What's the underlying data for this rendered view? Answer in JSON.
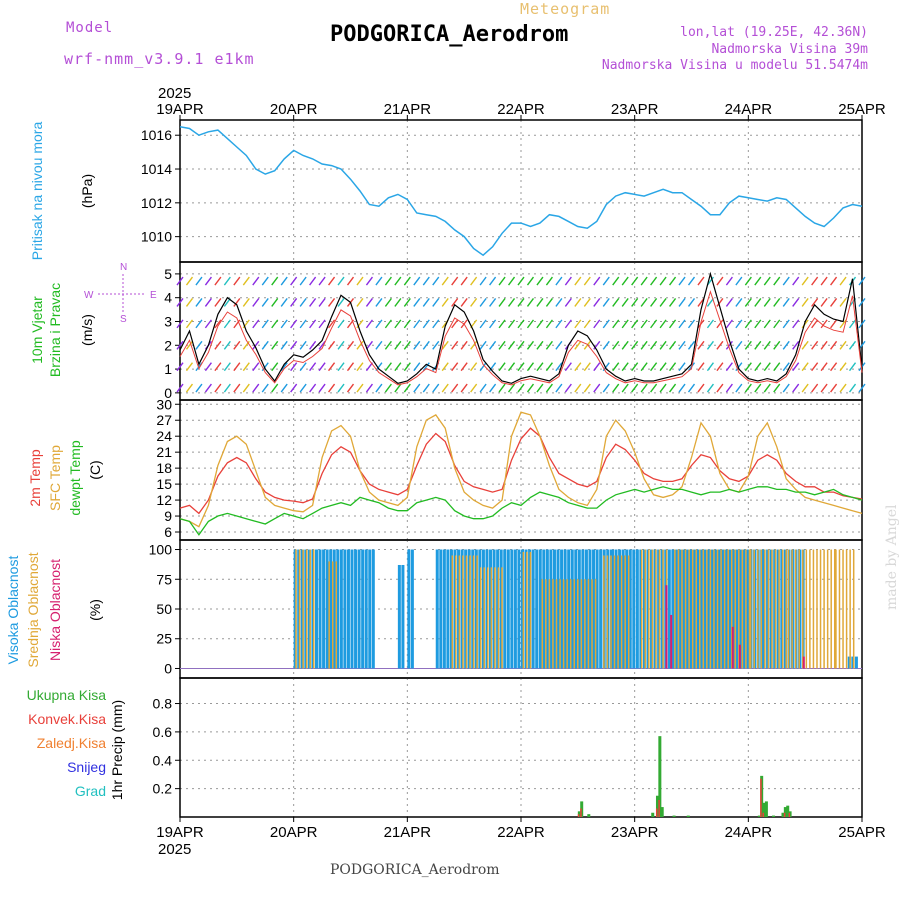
{
  "header": {
    "model_label": "Model",
    "model_name": "wrf-nmm_v3.9.1 e1km",
    "meteogram_label": "Meteogram",
    "station": "PODGORICA_Aerodrom",
    "lonlat": "lon,lat (19.25E, 42.36N)",
    "altitude": "Nadmorska Visina 39m",
    "model_altitude": "Nadmorska Visina u modelu 51.5474m",
    "footer": "PODGORICA_Aerodrom",
    "made_by": "made by Angel"
  },
  "colors": {
    "pressure": "#2aa6e6",
    "wind_label": "#22bb22",
    "temp2m": "#e8403a",
    "sfc": "#e0a838",
    "dewpt": "#22bb22",
    "high_cloud": "#1e9be0",
    "mid_cloud": "#e0a838",
    "low_cloud": "#d6206e",
    "precip_total": "#33aa33",
    "precip_conv": "#e8403a",
    "precip_frozen": "#f08030",
    "precip_snow": "#3030e0",
    "precip_hail": "#22c0c0",
    "wind_dir_label": "#b44fd6"
  },
  "chart_data": [
    {
      "type": "line",
      "title": "",
      "ylabel_colored": "Pritisak na nivou mora",
      "ylabel": "(hPa)",
      "x_top_year": "2025",
      "x_ticks": [
        "19APR",
        "20APR",
        "21APR",
        "22APR",
        "23APR",
        "24APR",
        "25APR"
      ],
      "ylim": [
        1008.5,
        1016.9
      ],
      "y_ticks": [
        1010,
        1012,
        1014,
        1016
      ],
      "grid": true,
      "series": [
        {
          "name": "",
          "x_hours": [
            0,
            2,
            4,
            6,
            8,
            10,
            12,
            14,
            16,
            18,
            20,
            22,
            24,
            26,
            28,
            30,
            32,
            34,
            36,
            38,
            40,
            42,
            44,
            46,
            48,
            50,
            52,
            54,
            56,
            58,
            60,
            62,
            64,
            66,
            68,
            70,
            72,
            74,
            76,
            78,
            80,
            82,
            84,
            86,
            88,
            90,
            92,
            94,
            96,
            98,
            100,
            102,
            104,
            106,
            108,
            110,
            112,
            114,
            116,
            118,
            120,
            122,
            124,
            126,
            128,
            130,
            132,
            134,
            136,
            138,
            140,
            142,
            144
          ],
          "values": [
            1016.5,
            1016.4,
            1016.0,
            1016.2,
            1016.3,
            1015.8,
            1015.3,
            1014.8,
            1014.0,
            1013.7,
            1013.9,
            1014.6,
            1015.1,
            1014.8,
            1014.6,
            1014.3,
            1014.2,
            1014.0,
            1013.4,
            1012.7,
            1011.9,
            1011.8,
            1012.3,
            1012.5,
            1012.2,
            1011.4,
            1011.3,
            1011.2,
            1010.9,
            1010.4,
            1010.0,
            1009.3,
            1008.9,
            1009.4,
            1010.2,
            1010.8,
            1010.8,
            1010.6,
            1010.8,
            1011.3,
            1011.2,
            1010.9,
            1010.6,
            1010.5,
            1010.9,
            1011.9,
            1012.4,
            1012.6,
            1012.5,
            1012.4,
            1012.6,
            1012.8,
            1012.6,
            1012.6,
            1012.2,
            1011.8,
            1011.3,
            1011.3,
            1012.0,
            1012.4,
            1012.3,
            1012.2,
            1012.1,
            1012.3,
            1012.2,
            1011.7,
            1011.2,
            1010.8,
            1010.6,
            1011.1,
            1011.7,
            1011.9,
            1011.8
          ]
        }
      ]
    },
    {
      "type": "line",
      "title": "",
      "ylabel_colored": "10m Vjetar Brzina i Pravac",
      "ylabel": "(m/s)",
      "direction_legend": [
        "N",
        "S",
        "W",
        "E",
        "<",
        "-",
        "|"
      ],
      "ylim": [
        -0.3,
        5.5
      ],
      "y_ticks": [
        0,
        1,
        2,
        3,
        4,
        5
      ],
      "grid": true,
      "series": [
        {
          "name": "",
          "x_hours": [
            0,
            2,
            4,
            6,
            8,
            10,
            12,
            14,
            16,
            18,
            20,
            22,
            24,
            26,
            28,
            30,
            32,
            34,
            36,
            38,
            40,
            42,
            44,
            46,
            48,
            50,
            52,
            54,
            56,
            58,
            60,
            62,
            64,
            66,
            68,
            70,
            72,
            74,
            76,
            78,
            80,
            82,
            84,
            86,
            88,
            90,
            92,
            94,
            96,
            98,
            100,
            102,
            104,
            106,
            108,
            110,
            112,
            114,
            116,
            118,
            120,
            122,
            124,
            126,
            128,
            130,
            132,
            134,
            136,
            138,
            140,
            142,
            144
          ],
          "values": [
            1.8,
            2.6,
            1.2,
            2.0,
            3.3,
            4.0,
            3.7,
            2.6,
            1.9,
            1.0,
            0.5,
            1.2,
            1.6,
            1.5,
            1.8,
            2.2,
            3.2,
            4.1,
            3.8,
            2.6,
            1.6,
            1.0,
            0.7,
            0.4,
            0.5,
            0.8,
            1.2,
            1.0,
            2.8,
            3.7,
            3.4,
            2.6,
            1.4,
            0.9,
            0.5,
            0.4,
            0.6,
            0.7,
            0.6,
            0.5,
            0.8,
            2.0,
            2.6,
            2.4,
            1.8,
            1.0,
            0.7,
            0.5,
            0.6,
            0.5,
            0.5,
            0.6,
            0.7,
            0.8,
            1.2,
            3.5,
            5.0,
            3.6,
            2.2,
            1.0,
            0.6,
            0.5,
            0.6,
            0.5,
            0.8,
            1.6,
            3.0,
            3.7,
            3.3,
            3.1,
            3.0,
            4.8,
            1.0
          ]
        }
      ]
    },
    {
      "type": "line",
      "title": "",
      "ylabel_colored": [
        "2m Temp",
        "SFC Temp",
        "dewpt Temp"
      ],
      "ylabel": "(C)",
      "ylim": [
        4.5,
        30.8
      ],
      "y_ticks": [
        6,
        9,
        12,
        15,
        18,
        21,
        24,
        27,
        30
      ],
      "grid": true,
      "x_hours": [
        0,
        2,
        4,
        6,
        8,
        10,
        12,
        14,
        16,
        18,
        20,
        22,
        24,
        26,
        28,
        30,
        32,
        34,
        36,
        38,
        40,
        42,
        44,
        46,
        48,
        50,
        52,
        54,
        56,
        58,
        60,
        62,
        64,
        66,
        68,
        70,
        72,
        74,
        76,
        78,
        80,
        82,
        84,
        86,
        88,
        90,
        92,
        94,
        96,
        98,
        100,
        102,
        104,
        106,
        108,
        110,
        112,
        114,
        116,
        118,
        120,
        122,
        124,
        126,
        128,
        130,
        132,
        134,
        136,
        138,
        140,
        142,
        144
      ],
      "series": [
        {
          "name": "2m Temp",
          "values": [
            10.5,
            11.0,
            9.5,
            12.0,
            16.5,
            19.0,
            20.0,
            19.0,
            16.0,
            13.5,
            12.5,
            12.0,
            11.8,
            11.5,
            12.2,
            17.0,
            20.5,
            22.0,
            21.0,
            17.5,
            15.0,
            14.0,
            13.5,
            13.0,
            14.0,
            18.5,
            22.5,
            24.5,
            23.0,
            18.5,
            15.5,
            14.5,
            14.0,
            13.5,
            14.0,
            19.5,
            23.5,
            25.5,
            24.0,
            20.0,
            17.0,
            16.0,
            15.0,
            14.5,
            15.5,
            20.0,
            22.5,
            21.5,
            19.5,
            17.0,
            16.0,
            15.5,
            15.5,
            16.0,
            18.5,
            20.5,
            20.0,
            17.5,
            16.0,
            15.5,
            16.5,
            19.5,
            20.5,
            19.5,
            17.0,
            15.5,
            14.5,
            14.5,
            13.5,
            13.5,
            12.8,
            12.5,
            12.2
          ]
        },
        {
          "name": "SFC Temp",
          "values": [
            8.5,
            8.0,
            7.0,
            11.0,
            18.5,
            23.0,
            24.0,
            22.5,
            17.5,
            12.5,
            11.0,
            10.5,
            10.0,
            9.8,
            11.0,
            20.0,
            25.0,
            26.0,
            24.0,
            17.5,
            13.5,
            12.0,
            11.5,
            11.0,
            12.5,
            22.0,
            27.0,
            28.0,
            25.5,
            18.0,
            13.5,
            12.0,
            11.0,
            10.5,
            12.0,
            24.0,
            28.5,
            28.0,
            24.0,
            18.5,
            14.0,
            12.5,
            11.5,
            11.0,
            14.0,
            24.0,
            27.0,
            25.0,
            21.0,
            16.0,
            13.0,
            12.5,
            13.0,
            14.5,
            20.0,
            26.5,
            24.0,
            17.0,
            14.0,
            13.5,
            16.5,
            24.0,
            26.5,
            22.0,
            16.0,
            14.0,
            12.5,
            12.0,
            11.5,
            11.0,
            10.5,
            10.0,
            9.5
          ]
        },
        {
          "name": "dewpt Temp",
          "values": [
            8.5,
            8.0,
            5.5,
            8.0,
            9.0,
            9.5,
            9.0,
            8.5,
            8.0,
            7.5,
            8.5,
            9.5,
            9.0,
            8.5,
            9.5,
            10.5,
            11.0,
            11.5,
            11.0,
            12.5,
            12.0,
            11.5,
            10.5,
            10.0,
            10.0,
            11.5,
            12.0,
            12.5,
            12.0,
            10.0,
            9.0,
            8.5,
            8.5,
            9.0,
            10.5,
            11.5,
            11.0,
            12.5,
            13.5,
            13.0,
            12.5,
            11.5,
            11.0,
            10.5,
            10.5,
            12.0,
            13.0,
            13.5,
            14.0,
            13.5,
            14.0,
            14.5,
            14.0,
            14.0,
            13.5,
            13.0,
            13.5,
            13.5,
            14.0,
            13.5,
            14.0,
            14.5,
            14.5,
            14.0,
            14.0,
            13.5,
            13.5,
            13.0,
            13.5,
            14.0,
            13.0,
            12.5,
            12.0
          ]
        }
      ]
    },
    {
      "type": "bar",
      "title": "",
      "ylabel_colored": [
        "Visoka Oblacnost",
        "Srednja Oblacnost",
        "Niska Oblacnost"
      ],
      "ylabel": "(%)",
      "ylim": [
        -8,
        108
      ],
      "y_ticks": [
        0,
        25,
        50,
        75,
        100
      ],
      "grid": true,
      "series": [
        {
          "name": "Visoka Oblacnost",
          "segments": [
            [
              24,
              41,
              100
            ],
            [
              46,
              47.5,
              87
            ],
            [
              48,
              49.5,
              100
            ],
            [
              54,
              69,
              100
            ],
            [
              69,
              91,
              100
            ],
            [
              91,
              100,
              100
            ],
            [
              100,
              123,
              100
            ],
            [
              123,
              132,
              100
            ],
            [
              141,
              143,
              10
            ]
          ]
        },
        {
          "name": "Srednja Oblacnost",
          "segments": [
            [
              24,
              28,
              100
            ],
            [
              31,
              33,
              90
            ],
            [
              57,
              63,
              95
            ],
            [
              63,
              68,
              85
            ],
            [
              72,
              74,
              98
            ],
            [
              76,
              88,
              75
            ],
            [
              89,
              95,
              95
            ],
            [
              97,
              103,
              100
            ],
            [
              104,
              120,
              100
            ],
            [
              120,
              128,
              100
            ],
            [
              128,
              138,
              100
            ],
            [
              138,
              142,
              100
            ]
          ]
        },
        {
          "name": "Niska Oblacnost",
          "points": [
            [
              102.5,
              70
            ],
            [
              103.5,
              45
            ],
            [
              116.5,
              35
            ],
            [
              118,
              20
            ],
            [
              131.5,
              10
            ]
          ]
        }
      ]
    },
    {
      "type": "bar",
      "title": "",
      "ylabel_colored": [
        "Ukupna Kisa",
        "Konvek.Kisa",
        "Zaledj.Kisa",
        "Snijeg",
        "Grad"
      ],
      "ylabel": "1hr Precip (mm)",
      "ylim": [
        0,
        0.98
      ],
      "y_ticks": [
        0.2,
        0.4,
        0.6,
        0.8
      ],
      "grid": true,
      "x_bottom_year": "2025",
      "x_ticks": [
        "19APR",
        "20APR",
        "21APR",
        "22APR",
        "23APR",
        "24APR",
        "25APR"
      ],
      "series": [
        {
          "name": "Ukupna Kisa",
          "points": [
            [
              84,
              0.04
            ],
            [
              84.5,
              0.11
            ],
            [
              86,
              0.02
            ],
            [
              99.5,
              0.03
            ],
            [
              100.5,
              0.15
            ],
            [
              101,
              0.57
            ],
            [
              101.5,
              0.07
            ],
            [
              104,
              0.01
            ],
            [
              107,
              0.01
            ],
            [
              122,
              0.01
            ],
            [
              122.5,
              0.29
            ],
            [
              123,
              0.1
            ],
            [
              123.5,
              0.11
            ],
            [
              125,
              0.01
            ],
            [
              127,
              0.03
            ],
            [
              127.5,
              0.07
            ],
            [
              128,
              0.08
            ],
            [
              128.5,
              0.04
            ]
          ]
        },
        {
          "name": "Konvek.Kisa",
          "points": [
            [
              84,
              0.02
            ],
            [
              84.5,
              0.06
            ],
            [
              100.5,
              0.06
            ],
            [
              101,
              0.12
            ],
            [
              122.5,
              0.27
            ],
            [
              123,
              0.03
            ],
            [
              127.5,
              0.03
            ],
            [
              128.5,
              0.03
            ]
          ]
        }
      ]
    }
  ]
}
